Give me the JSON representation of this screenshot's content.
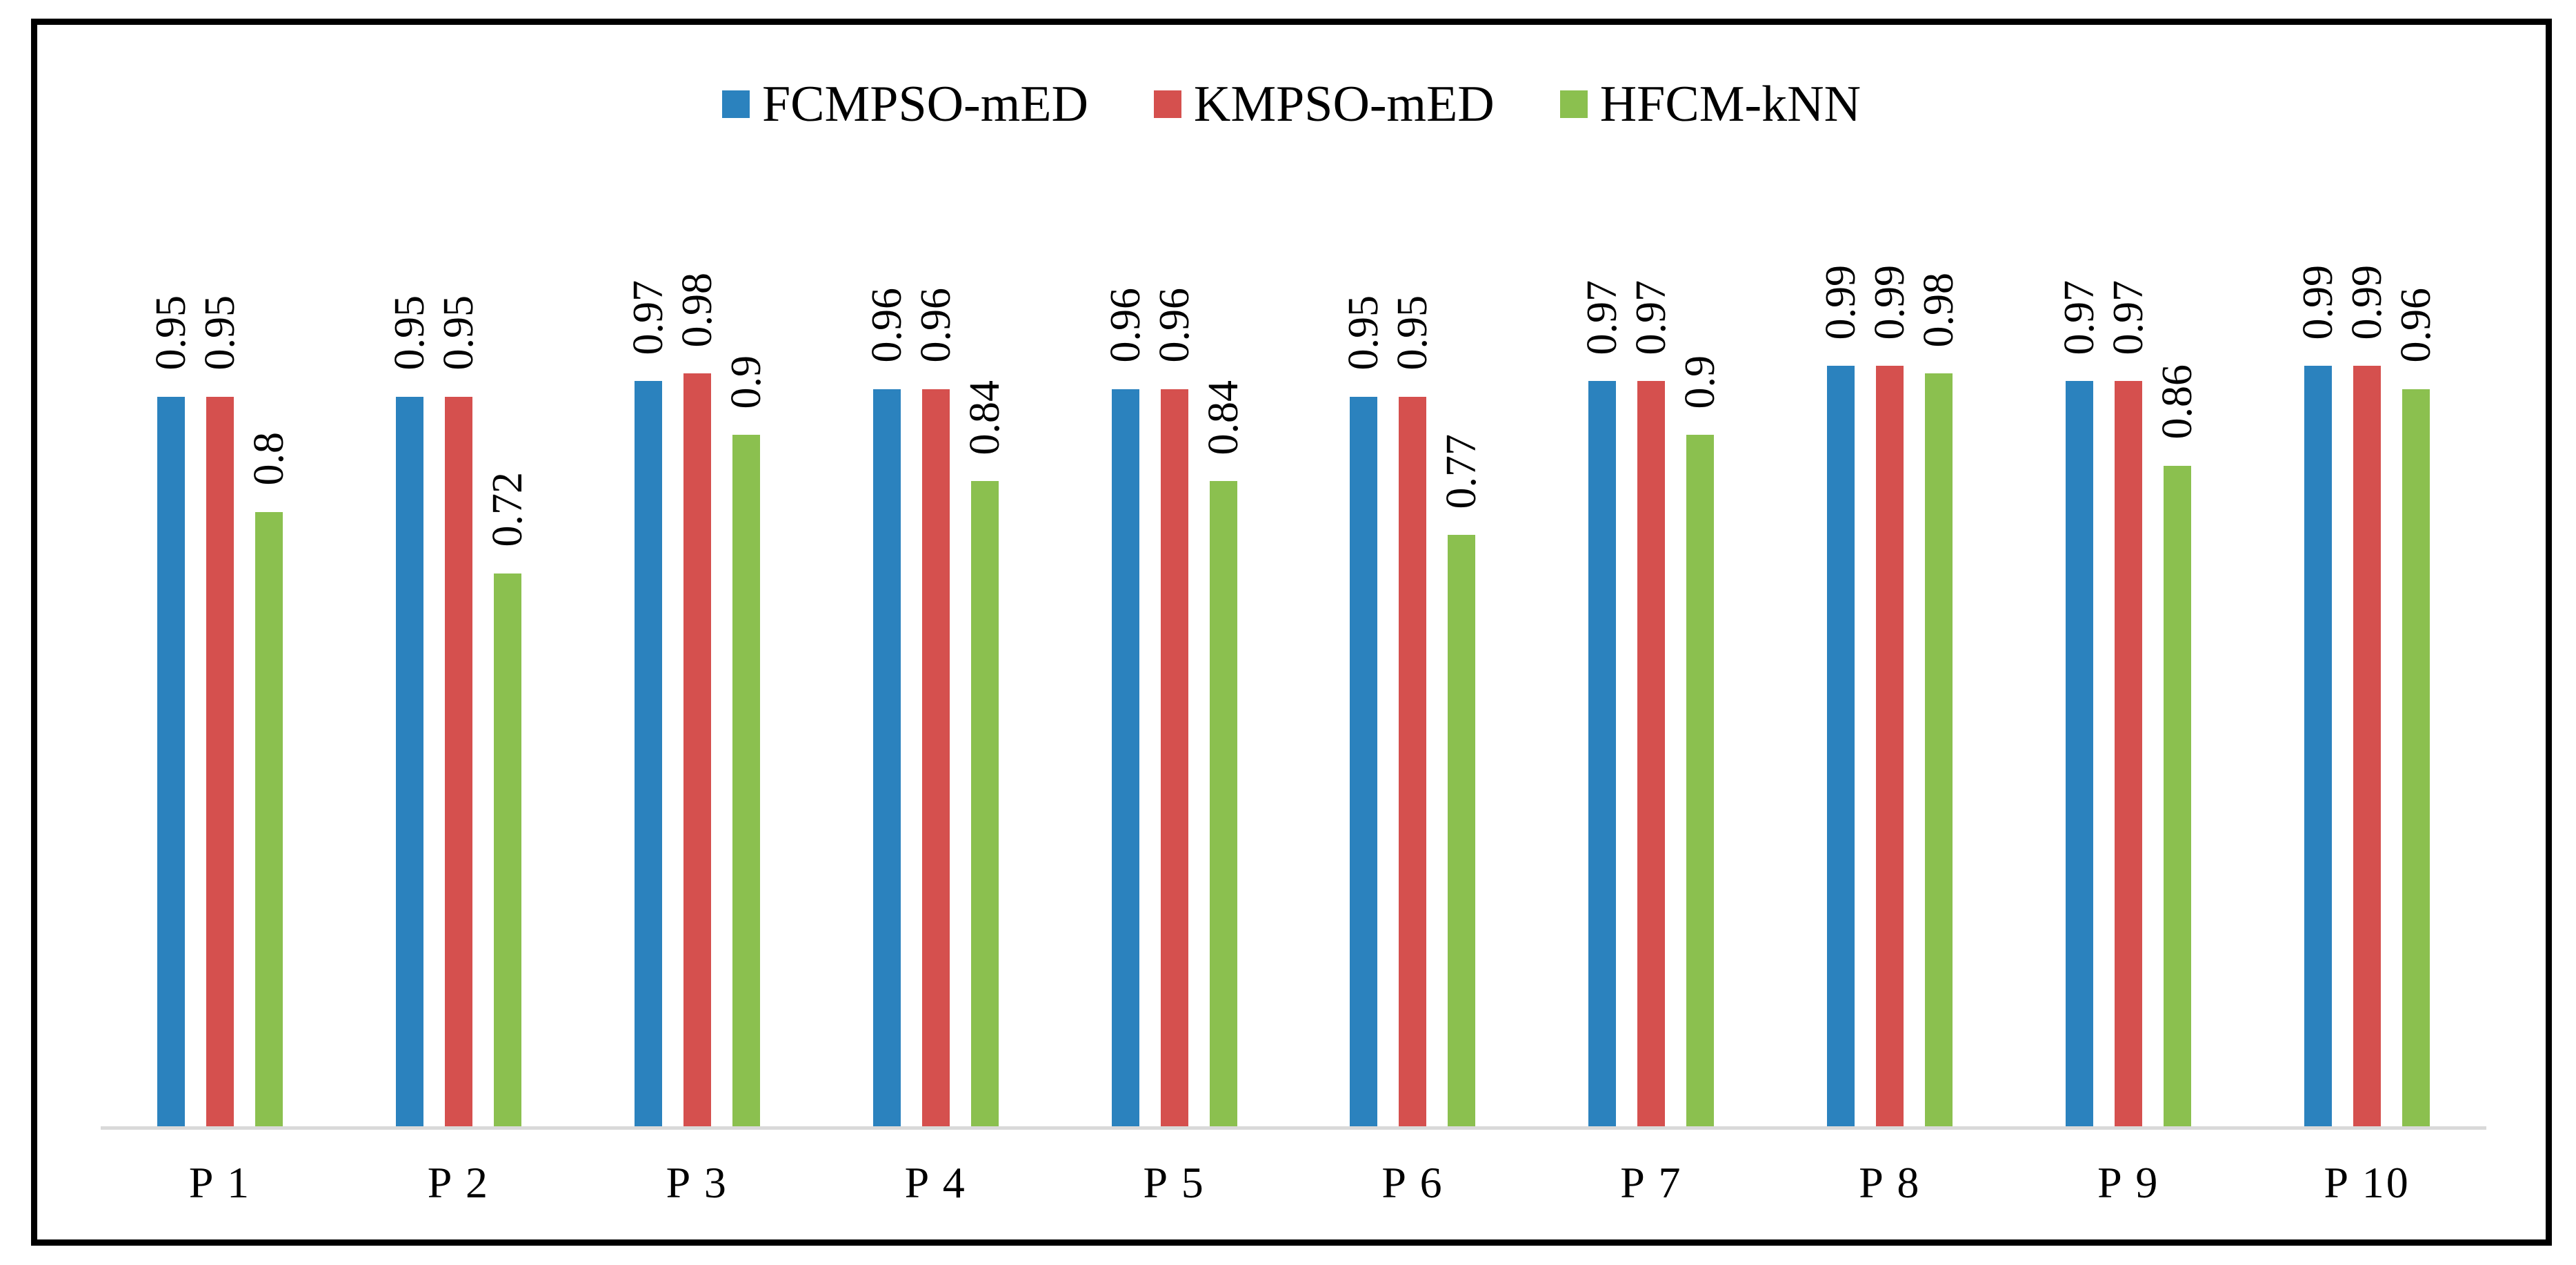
{
  "figure": {
    "background": "#ffffff",
    "frame_border_color": "#000000",
    "baseline_color": "#D9D9D9"
  },
  "chart_data": {
    "type": "bar",
    "categories": [
      "P 1",
      "P 2",
      "P 3",
      "P 4",
      "P 5",
      "P 6",
      "P 7",
      "P 8",
      "P 9",
      "P 10"
    ],
    "series": [
      {
        "name": "FCMPSO-mED",
        "color": "#2B82BE",
        "values": [
          0.95,
          0.95,
          0.97,
          0.96,
          0.96,
          0.95,
          0.97,
          0.99,
          0.97,
          0.99
        ]
      },
      {
        "name": "KMPSO-mED",
        "color": "#D5504E",
        "values": [
          0.95,
          0.95,
          0.98,
          0.96,
          0.96,
          0.95,
          0.97,
          0.99,
          0.97,
          0.99
        ]
      },
      {
        "name": "HFCM-kNN",
        "color": "#8BC04F",
        "values": [
          0.8,
          0.72,
          0.9,
          0.84,
          0.84,
          0.77,
          0.9,
          0.98,
          0.86,
          0.96
        ]
      }
    ],
    "title": "",
    "xlabel": "",
    "ylabel": "",
    "ylim": [
      0,
      1
    ],
    "grid": false,
    "axes_visible": false,
    "legend_position": "top-center",
    "value_labels_rotation_deg": 90
  }
}
